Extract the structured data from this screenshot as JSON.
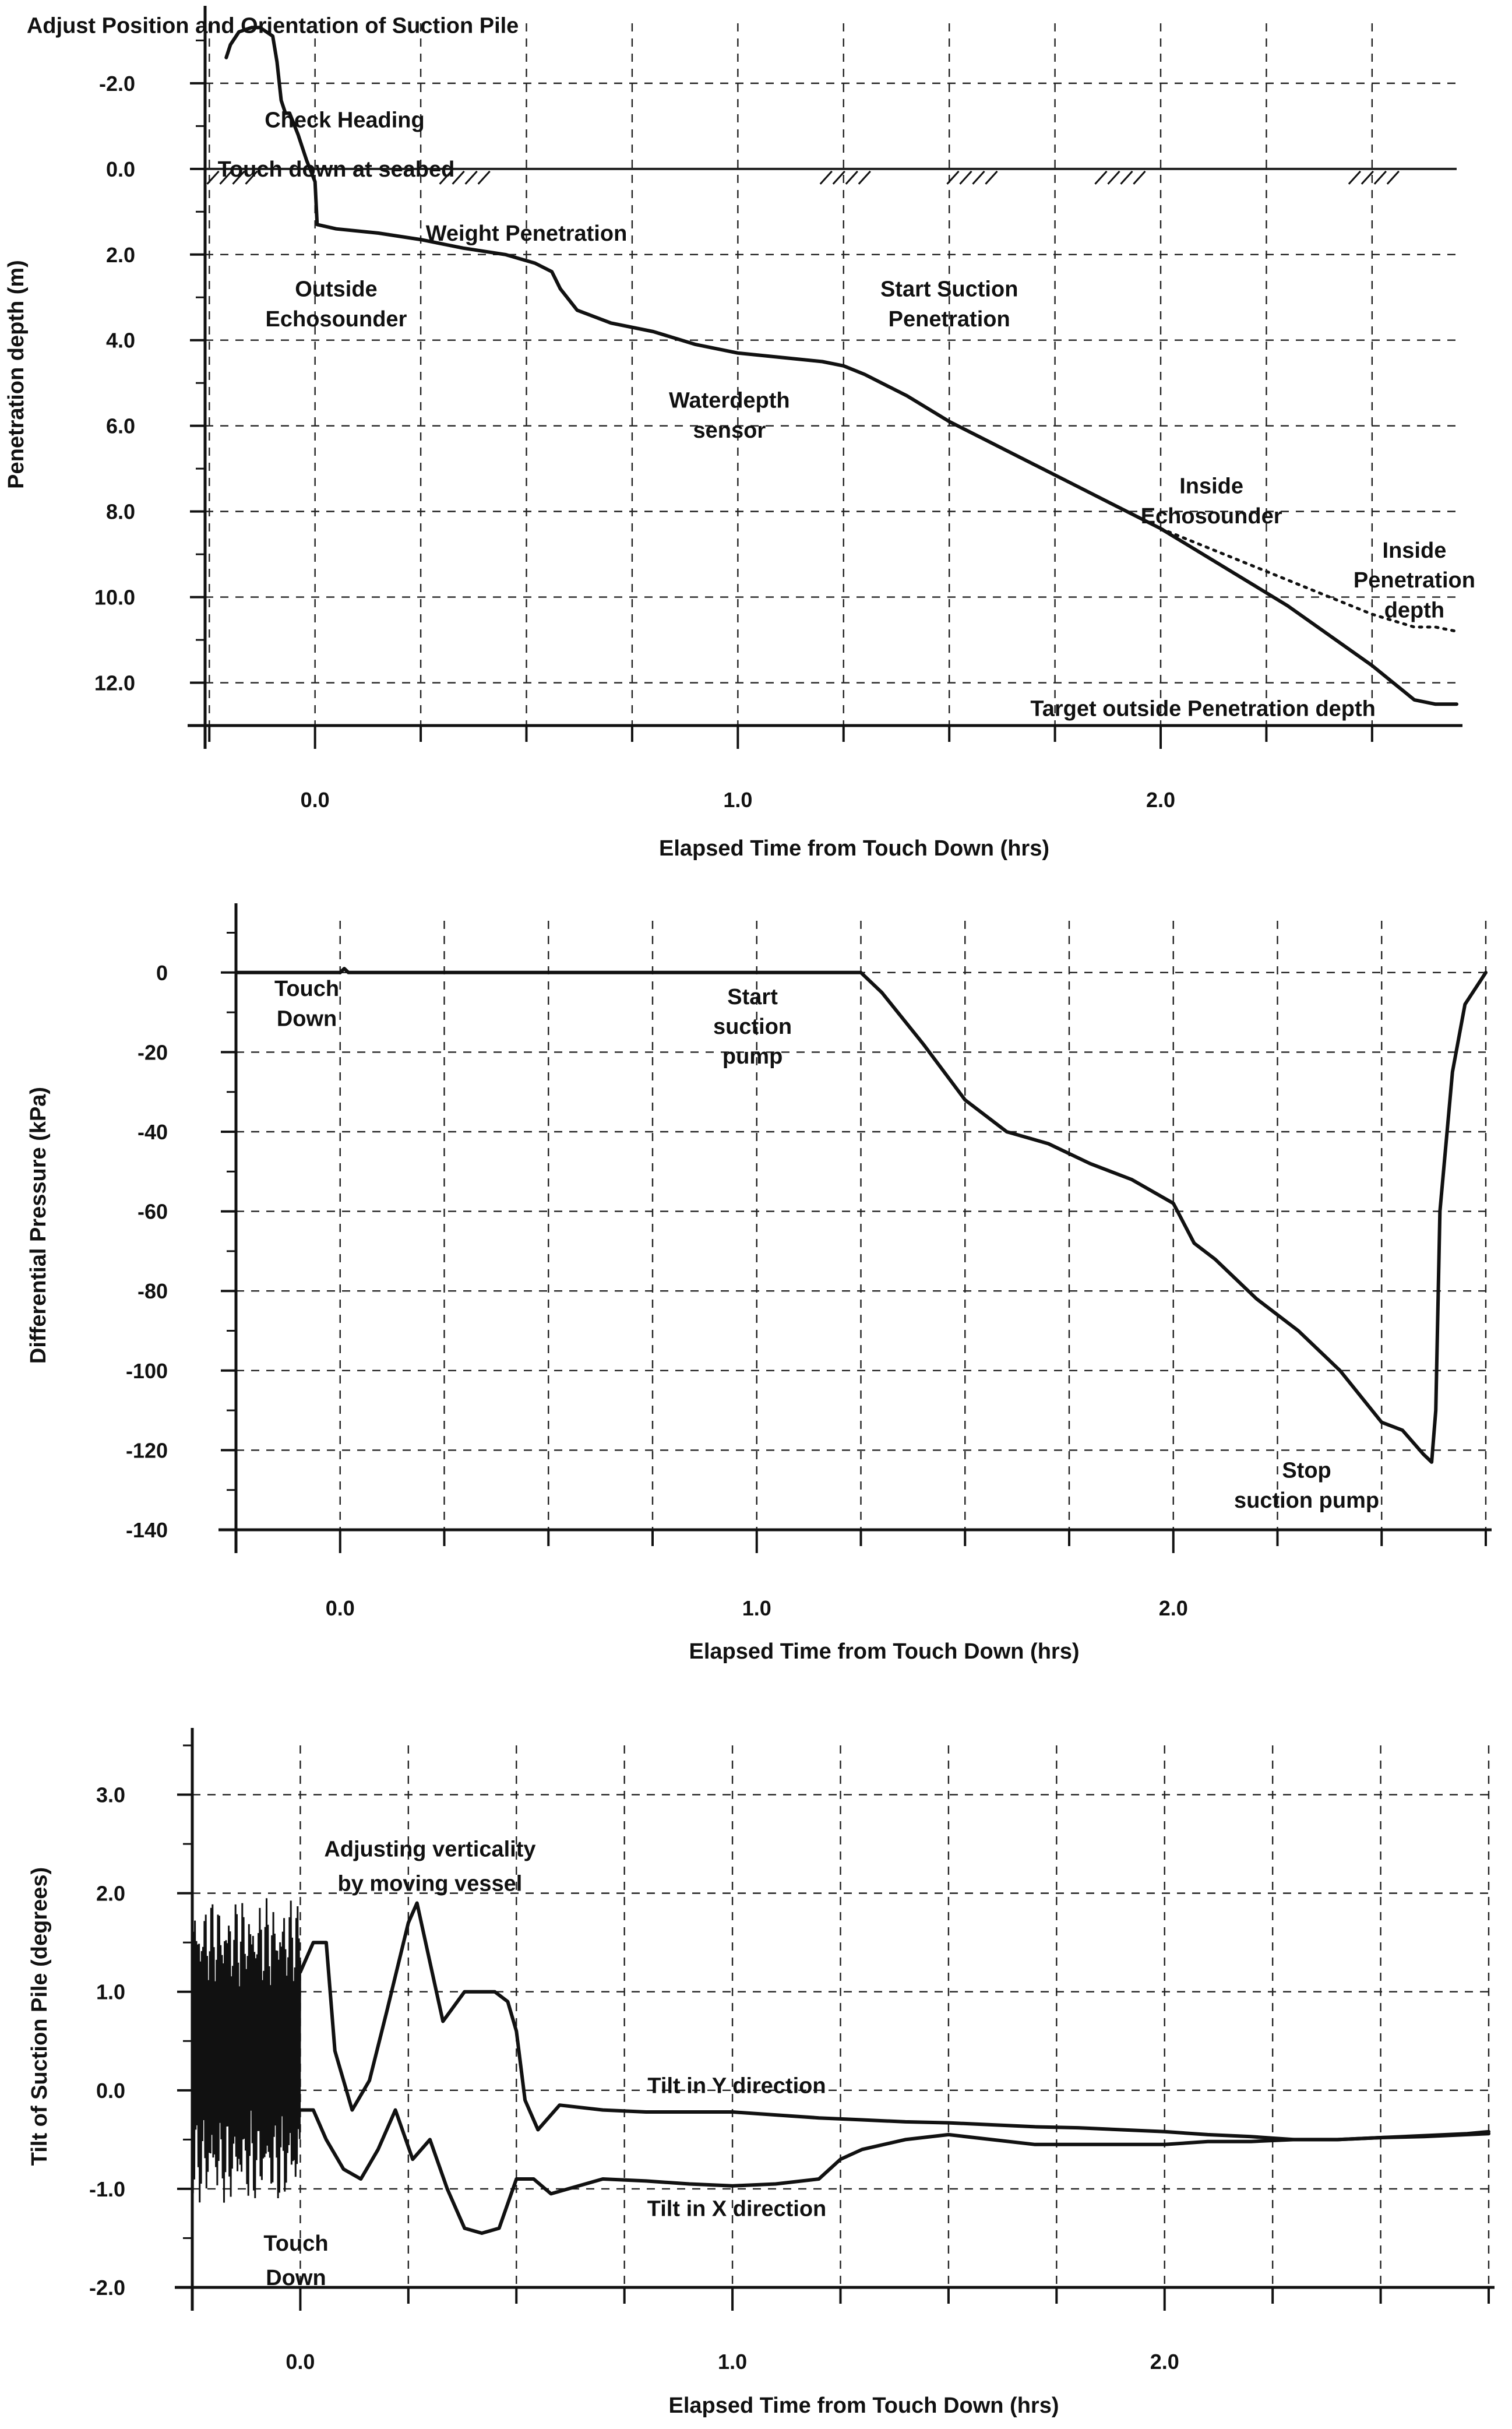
{
  "colors": {
    "line": "#111111",
    "grid": "#222222",
    "background": "#ffffff"
  },
  "chart_data": [
    {
      "type": "line",
      "title": "",
      "xlabel": "Elapsed Time from Touch Down (hrs)",
      "ylabel": "Penetration depth (m)",
      "xlim": [
        -0.26,
        2.7
      ],
      "ylim": [
        13.0,
        -3.4
      ],
      "y_inverted": true,
      "grid": true,
      "x_ticks": [
        {
          "v": 0,
          "label": "0.0"
        },
        {
          "v": 1,
          "label": "1.0"
        },
        {
          "v": 2,
          "label": "2.0"
        }
      ],
      "y_ticks": [
        {
          "v": -2,
          "label": "-2.0"
        },
        {
          "v": 0,
          "label": "0.0"
        },
        {
          "v": 2,
          "label": "2.0"
        },
        {
          "v": 4,
          "label": "4.0"
        },
        {
          "v": 6,
          "label": "6.0"
        },
        {
          "v": 8,
          "label": "8.0"
        },
        {
          "v": 10,
          "label": "10.0"
        },
        {
          "v": 12,
          "label": "12.0"
        }
      ],
      "seabed_level": 0,
      "series": [
        {
          "name": "Outside penetration depth",
          "style": "solid",
          "x": [
            -0.21,
            -0.2,
            -0.18,
            -0.15,
            -0.13,
            -0.1,
            -0.09,
            -0.08,
            -0.07,
            -0.06,
            -0.04,
            -0.02,
            0.0,
            0.005,
            0.05,
            0.15,
            0.25,
            0.35,
            0.45,
            0.52,
            0.56,
            0.58,
            0.62,
            0.7,
            0.8,
            0.9,
            1.0,
            1.1,
            1.2,
            1.25,
            1.3,
            1.4,
            1.5,
            1.6,
            1.7,
            1.8,
            1.9,
            2.0,
            2.1,
            2.2,
            2.3,
            2.4,
            2.5,
            2.55,
            2.6,
            2.65,
            2.7
          ],
          "values": [
            -2.6,
            -2.9,
            -3.2,
            -3.3,
            -3.3,
            -3.1,
            -2.5,
            -1.6,
            -1.3,
            -1.3,
            -0.8,
            -0.2,
            0.3,
            1.3,
            1.4,
            1.5,
            1.65,
            1.85,
            2.0,
            2.2,
            2.4,
            2.8,
            3.3,
            3.6,
            3.8,
            4.1,
            4.3,
            4.4,
            4.5,
            4.6,
            4.8,
            5.3,
            5.9,
            6.4,
            6.9,
            7.4,
            7.9,
            8.4,
            9.0,
            9.6,
            10.2,
            10.9,
            11.6,
            12.0,
            12.4,
            12.5,
            12.5
          ]
        },
        {
          "name": "Inside penetration depth",
          "style": "dotted",
          "x": [
            2.0,
            2.1,
            2.2,
            2.3,
            2.4,
            2.5,
            2.6,
            2.65,
            2.7
          ],
          "values": [
            8.4,
            8.8,
            9.2,
            9.6,
            10.0,
            10.4,
            10.7,
            10.7,
            10.8
          ]
        }
      ],
      "annotations": [
        {
          "text": "Adjust Position and Orientation of Suction Pile",
          "x": -0.1,
          "y": -3.35
        },
        {
          "text": "Check Heading",
          "x": 0.07,
          "y": -1.15
        },
        {
          "text": "Touch down at seabed",
          "x": 0.05,
          "y": 0.0
        },
        {
          "text": "Weight Penetration",
          "x": 0.5,
          "y": 1.5
        },
        {
          "text": "Outside",
          "x": 0.05,
          "y": 2.8
        },
        {
          "text": "Echosounder",
          "x": 0.05,
          "y": 3.5
        },
        {
          "text": "Start Suction",
          "x": 1.5,
          "y": 2.8
        },
        {
          "text": "Penetration",
          "x": 1.5,
          "y": 3.5
        },
        {
          "text": "Waterdepth",
          "x": 0.98,
          "y": 5.4
        },
        {
          "text": "sensor",
          "x": 0.98,
          "y": 6.1
        },
        {
          "text": "Inside",
          "x": 2.12,
          "y": 7.4
        },
        {
          "text": "Echosounder",
          "x": 2.12,
          "y": 8.1
        },
        {
          "text": "Inside",
          "x": 2.6,
          "y": 8.9
        },
        {
          "text": "Penetration",
          "x": 2.6,
          "y": 9.6
        },
        {
          "text": "depth",
          "x": 2.6,
          "y": 10.3
        },
        {
          "text": "Target outside Penetration depth",
          "x": 2.1,
          "y": 12.6
        }
      ]
    },
    {
      "type": "line",
      "title": "",
      "xlabel": "Elapsed Time from Touch Down (hrs)",
      "ylabel": "Differential Pressure (kPa)",
      "xlim": [
        -0.25,
        2.75
      ],
      "ylim": [
        -140,
        13
      ],
      "grid": true,
      "x_ticks": [
        {
          "v": 0,
          "label": "0.0"
        },
        {
          "v": 1,
          "label": "1.0"
        },
        {
          "v": 2,
          "label": "2.0"
        }
      ],
      "y_ticks": [
        {
          "v": 0,
          "label": "0"
        },
        {
          "v": -20,
          "label": "-20"
        },
        {
          "v": -40,
          "label": "-40"
        },
        {
          "v": -60,
          "label": "-60"
        },
        {
          "v": -80,
          "label": "-80"
        },
        {
          "v": -100,
          "label": "-100"
        },
        {
          "v": -120,
          "label": "-120"
        },
        {
          "v": -140,
          "label": "-140"
        }
      ],
      "series": [
        {
          "name": "Differential pressure",
          "style": "solid",
          "x": [
            -0.25,
            0.0,
            0.01,
            0.02,
            0.6,
            1.2,
            1.25,
            1.3,
            1.4,
            1.5,
            1.6,
            1.7,
            1.8,
            1.9,
            2.0,
            2.05,
            2.1,
            2.2,
            2.3,
            2.4,
            2.5,
            2.55,
            2.6,
            2.62,
            2.63,
            2.64,
            2.67,
            2.7,
            2.75
          ],
          "values": [
            0,
            0,
            1,
            0,
            0,
            0,
            0,
            -5,
            -18,
            -32,
            -40,
            -43,
            -48,
            -52,
            -58,
            -68,
            -72,
            -82,
            -90,
            -100,
            -113,
            -115,
            -121,
            -123,
            -110,
            -60,
            -25,
            -8,
            0
          ]
        }
      ],
      "annotations": [
        {
          "text": "Touch",
          "x": -0.08,
          "y": -4
        },
        {
          "text": "Down",
          "x": -0.08,
          "y": -11.5
        },
        {
          "text": "Start",
          "x": 0.99,
          "y": -6
        },
        {
          "text": "suction",
          "x": 0.99,
          "y": -13.5
        },
        {
          "text": "pump",
          "x": 0.99,
          "y": -21
        },
        {
          "text": "Stop",
          "x": 2.32,
          "y": -125
        },
        {
          "text": "suction pump",
          "x": 2.32,
          "y": -132.5
        }
      ]
    },
    {
      "type": "line",
      "title": "",
      "xlabel": "Elapsed Time from Touch Down (hrs)",
      "ylabel": "Tilt of Suction Pile (degrees)",
      "xlim": [
        -0.25,
        2.75
      ],
      "ylim": [
        -2.0,
        3.5
      ],
      "grid": true,
      "x_ticks": [
        {
          "v": 0,
          "label": "0.0"
        },
        {
          "v": 1,
          "label": "1.0"
        },
        {
          "v": 2,
          "label": "2.0"
        }
      ],
      "y_ticks": [
        {
          "v": 3,
          "label": "3.0"
        },
        {
          "v": 2,
          "label": "2.0"
        },
        {
          "v": 1,
          "label": "1.0"
        },
        {
          "v": 0,
          "label": "0.0"
        },
        {
          "v": -1,
          "label": "-1.0"
        },
        {
          "v": -2,
          "label": "-2.0"
        }
      ],
      "series": [
        {
          "name": "Tilt in Y direction",
          "style": "solid",
          "x": [
            0.0,
            0.03,
            0.06,
            0.08,
            0.12,
            0.16,
            0.2,
            0.25,
            0.27,
            0.3,
            0.33,
            0.38,
            0.45,
            0.48,
            0.5,
            0.52,
            0.55,
            0.6,
            0.7,
            0.8,
            0.9,
            1.0,
            1.1,
            1.2,
            1.3,
            1.4,
            1.5,
            1.6,
            1.7,
            1.8,
            1.9,
            2.0,
            2.1,
            2.2,
            2.3,
            2.4,
            2.5,
            2.6,
            2.7,
            2.75
          ],
          "values": [
            1.2,
            1.5,
            1.5,
            0.4,
            -0.2,
            0.1,
            0.8,
            1.7,
            1.9,
            1.3,
            0.7,
            1.0,
            1.0,
            0.9,
            0.6,
            -0.1,
            -0.4,
            -0.15,
            -0.2,
            -0.22,
            -0.22,
            -0.22,
            -0.25,
            -0.28,
            -0.3,
            -0.32,
            -0.33,
            -0.35,
            -0.37,
            -0.38,
            -0.4,
            -0.42,
            -0.45,
            -0.47,
            -0.5,
            -0.5,
            -0.48,
            -0.47,
            -0.45,
            -0.44
          ]
        },
        {
          "name": "Tilt in X direction",
          "style": "solid",
          "x": [
            0.0,
            0.03,
            0.06,
            0.1,
            0.14,
            0.18,
            0.22,
            0.26,
            0.3,
            0.34,
            0.38,
            0.42,
            0.46,
            0.5,
            0.54,
            0.58,
            0.62,
            0.7,
            0.8,
            0.9,
            1.0,
            1.1,
            1.2,
            1.25,
            1.3,
            1.4,
            1.5,
            1.6,
            1.7,
            1.8,
            1.9,
            2.0,
            2.1,
            2.2,
            2.3,
            2.4,
            2.5,
            2.6,
            2.7,
            2.75
          ],
          "values": [
            -0.2,
            -0.2,
            -0.5,
            -0.8,
            -0.9,
            -0.6,
            -0.2,
            -0.7,
            -0.5,
            -1.0,
            -1.4,
            -1.45,
            -1.4,
            -0.9,
            -0.9,
            -1.05,
            -1.0,
            -0.9,
            -0.92,
            -0.95,
            -0.97,
            -0.95,
            -0.9,
            -0.7,
            -0.6,
            -0.5,
            -0.45,
            -0.5,
            -0.55,
            -0.55,
            -0.55,
            -0.55,
            -0.52,
            -0.52,
            -0.5,
            -0.5,
            -0.48,
            -0.46,
            -0.44,
            -0.42
          ]
        }
      ],
      "annotations": [
        {
          "text": "Adjusting verticality",
          "x": 0.3,
          "y": 2.45
        },
        {
          "text": "by moving vessel",
          "x": 0.3,
          "y": 2.1
        },
        {
          "text": "Tilt in Y direction",
          "x": 1.01,
          "y": 0.05
        },
        {
          "text": "Tilt in X direction",
          "x": 1.01,
          "y": -1.2
        },
        {
          "text": "Touch",
          "x": -0.01,
          "y": -1.55
        },
        {
          "text": "Down",
          "x": -0.01,
          "y": -1.9
        }
      ]
    }
  ]
}
